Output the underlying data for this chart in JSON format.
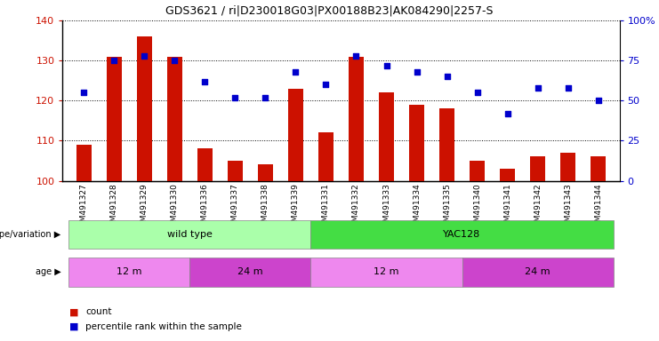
{
  "title": "GDS3621 / ri|D230018G03|PX00188B23|AK084290|2257-S",
  "samples": [
    "GSM491327",
    "GSM491328",
    "GSM491329",
    "GSM491330",
    "GSM491336",
    "GSM491337",
    "GSM491338",
    "GSM491339",
    "GSM491331",
    "GSM491332",
    "GSM491333",
    "GSM491334",
    "GSM491335",
    "GSM491340",
    "GSM491341",
    "GSM491342",
    "GSM491343",
    "GSM491344"
  ],
  "counts": [
    109,
    131,
    136,
    131,
    108,
    105,
    104,
    123,
    112,
    131,
    122,
    119,
    118,
    105,
    103,
    106,
    107,
    106
  ],
  "percentiles": [
    55,
    75,
    78,
    75,
    62,
    52,
    52,
    68,
    60,
    78,
    72,
    68,
    65,
    55,
    42,
    58,
    58,
    50
  ],
  "ylim_left": [
    100,
    140
  ],
  "ylim_right": [
    0,
    100
  ],
  "yticks_left": [
    100,
    110,
    120,
    130,
    140
  ],
  "yticks_right": [
    0,
    25,
    50,
    75,
    100
  ],
  "bar_color": "#cc1100",
  "dot_color": "#0000cc",
  "background_color": "#ffffff",
  "genotype_groups": [
    {
      "label": "wild type",
      "start": 0,
      "end": 8,
      "color": "#aaffaa"
    },
    {
      "label": "YAC128",
      "start": 8,
      "end": 18,
      "color": "#44dd44"
    }
  ],
  "age_groups": [
    {
      "label": "12 m",
      "start": 0,
      "end": 4,
      "color": "#ee88ee"
    },
    {
      "label": "24 m",
      "start": 4,
      "end": 8,
      "color": "#cc44cc"
    },
    {
      "label": "12 m",
      "start": 8,
      "end": 13,
      "color": "#ee88ee"
    },
    {
      "label": "24 m",
      "start": 13,
      "end": 18,
      "color": "#cc44cc"
    }
  ],
  "legend_count_label": "count",
  "legend_pct_label": "percentile rank within the sample",
  "bar_width": 0.5
}
